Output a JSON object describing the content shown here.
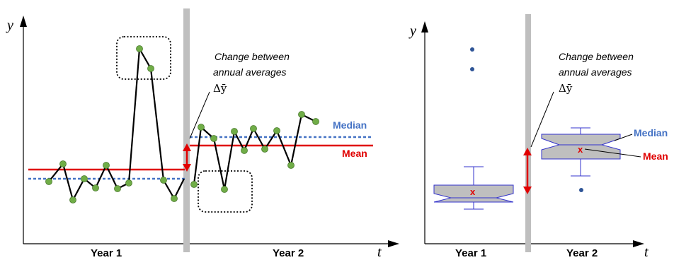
{
  "left_panel": {
    "y_axis_label": "y",
    "x_axis_label": "t",
    "year1_label": "Year 1",
    "year2_label": "Year 2",
    "annotation_line1": "Change between",
    "annotation_line2": "annual averages",
    "annotation_line3": "Δȳ",
    "median_label": "Median",
    "mean_label": "Mean"
  },
  "right_panel": {
    "y_axis_label": "y",
    "x_axis_label": "t",
    "year1_label": "Year 1",
    "year2_label": "Year 2",
    "annotation_line1": "Change between",
    "annotation_line2": "annual averages",
    "annotation_line3": "Δȳ",
    "median_label": "Median",
    "mean_label": "Mean",
    "mean_marker": "x"
  },
  "colors": {
    "mean": "#E00000",
    "median": "#4472C4",
    "points": "#70AD47",
    "divider": "#BFBFBF",
    "box_fill": "#BFBFBF",
    "box_edge": "#3333CC"
  }
}
